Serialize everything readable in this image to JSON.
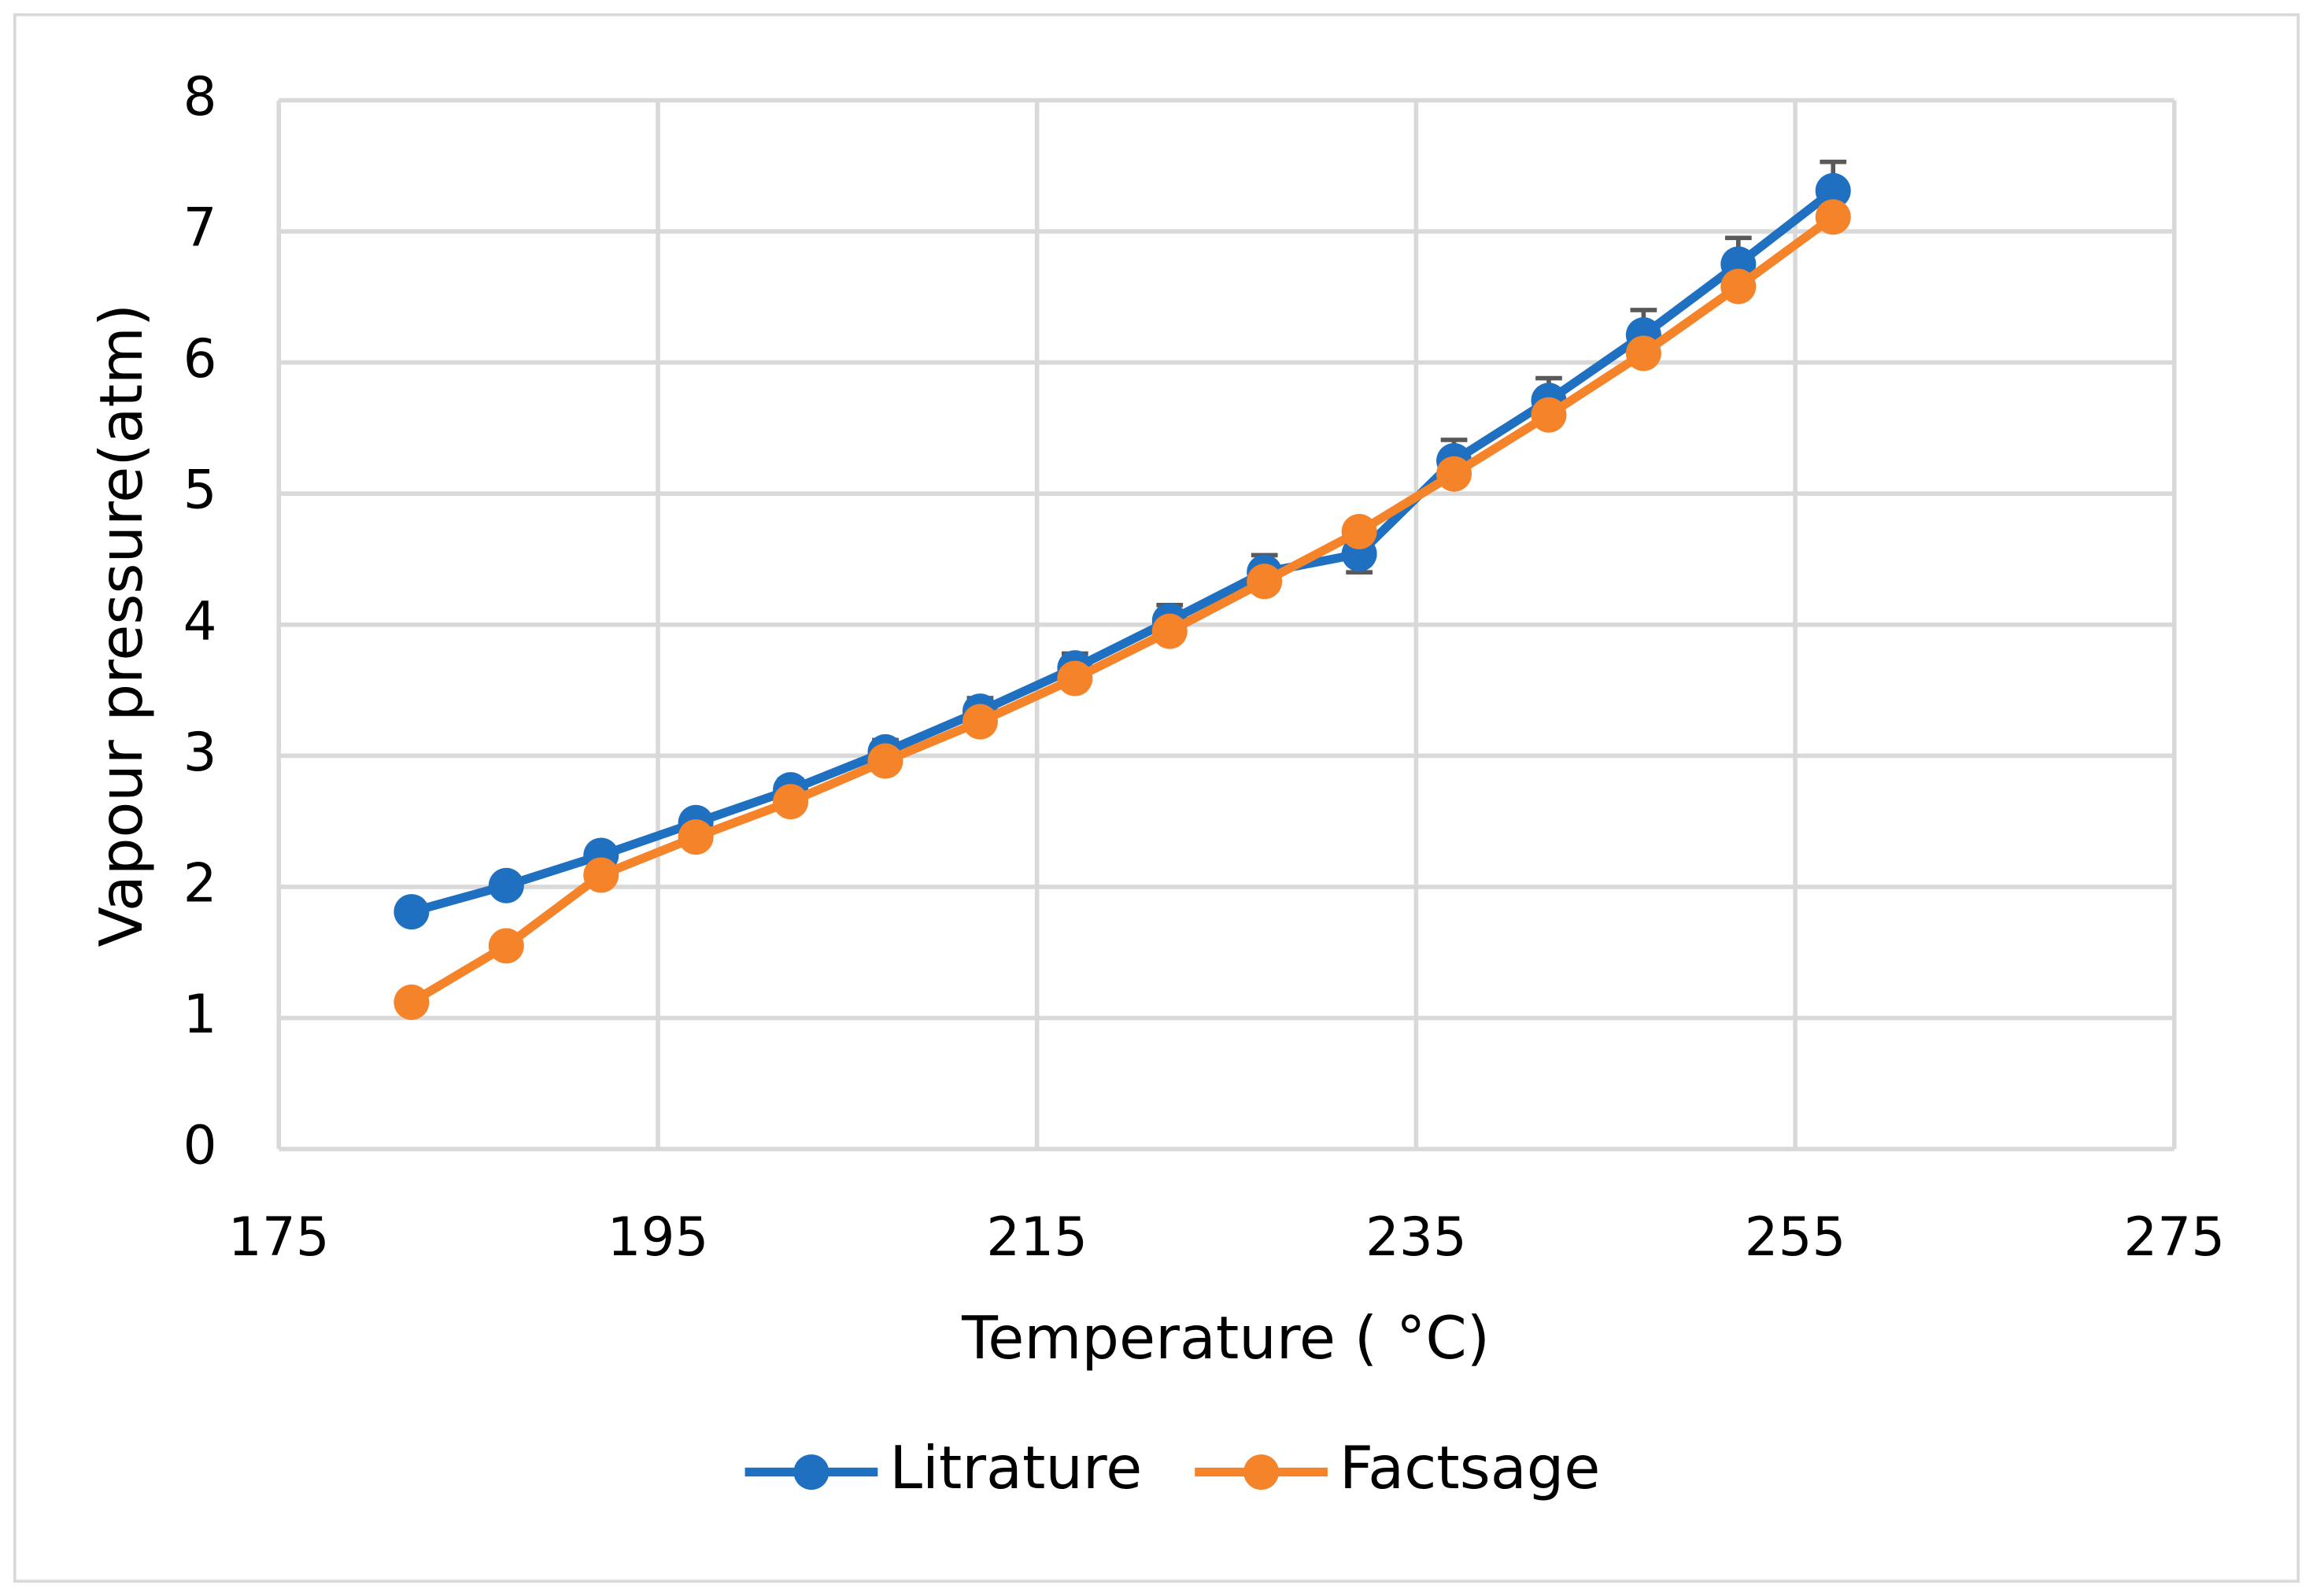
{
  "chart_data": {
    "type": "line",
    "x_label": "Temperature ( °C)",
    "y_label": "Vapour pressure(atm)",
    "x": [
      182,
      187,
      192,
      197,
      202,
      207,
      212,
      217,
      222,
      227,
      232,
      237,
      242,
      247,
      252,
      257
    ],
    "series": [
      {
        "name": "Litrature",
        "color": "#1f70c1",
        "values": [
          1.81,
          2.01,
          2.24,
          2.49,
          2.74,
          3.03,
          3.34,
          3.67,
          4.03,
          4.4,
          4.54,
          5.25,
          5.71,
          6.21,
          6.75,
          7.31
        ],
        "errors": [
          0.05,
          0.06,
          0.07,
          0.07,
          0.08,
          0.09,
          0.1,
          0.11,
          0.12,
          0.13,
          0.14,
          0.16,
          0.17,
          0.19,
          0.2,
          0.22
        ]
      },
      {
        "name": "Factsage",
        "color": "#f5832a",
        "values": [
          1.12,
          1.55,
          2.09,
          2.38,
          2.65,
          2.96,
          3.26,
          3.59,
          3.95,
          4.33,
          4.71,
          5.15,
          5.6,
          6.07,
          6.58,
          7.11
        ]
      }
    ],
    "xlim": [
      175,
      275
    ],
    "xticks": [
      175,
      195,
      215,
      235,
      255,
      275
    ],
    "ylim": [
      0,
      8
    ],
    "yticks": [
      0,
      1,
      2,
      3,
      4,
      5,
      6,
      7,
      8
    ],
    "grid": true,
    "legend": "bottom"
  }
}
